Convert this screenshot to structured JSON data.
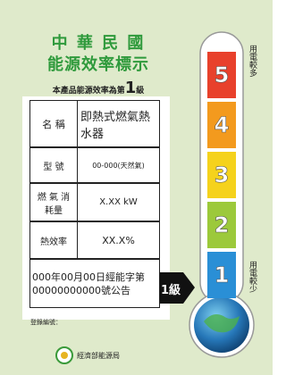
{
  "header": {
    "title_line1": "中 華 民 國",
    "title_line2": "能源效率標示",
    "grade_prefix": "本產品能源效率為第",
    "grade": "1",
    "grade_suffix": "級"
  },
  "table": {
    "rows": [
      [
        "名 稱",
        "即熱式燃氣熱水器"
      ],
      [
        "型 號",
        "00-000(天然氣)"
      ],
      [
        "燃 氣 消耗量",
        "X.XX kW"
      ],
      [
        "熱效率",
        "XX.X%"
      ]
    ],
    "notice": "000年00月00日經能字第00000000000號公告"
  },
  "pointer": "1級",
  "registration": "登錄編號：",
  "thermometer": {
    "levels": [
      5,
      4,
      3,
      2,
      1
    ],
    "colors": [
      "#e8412c",
      "#f39a1e",
      "#f5d21c",
      "#9cc93b",
      "#2a8fd6"
    ],
    "top_label": "用電較多",
    "bottom_label": "用電較少"
  },
  "footer": "經濟部能源局"
}
